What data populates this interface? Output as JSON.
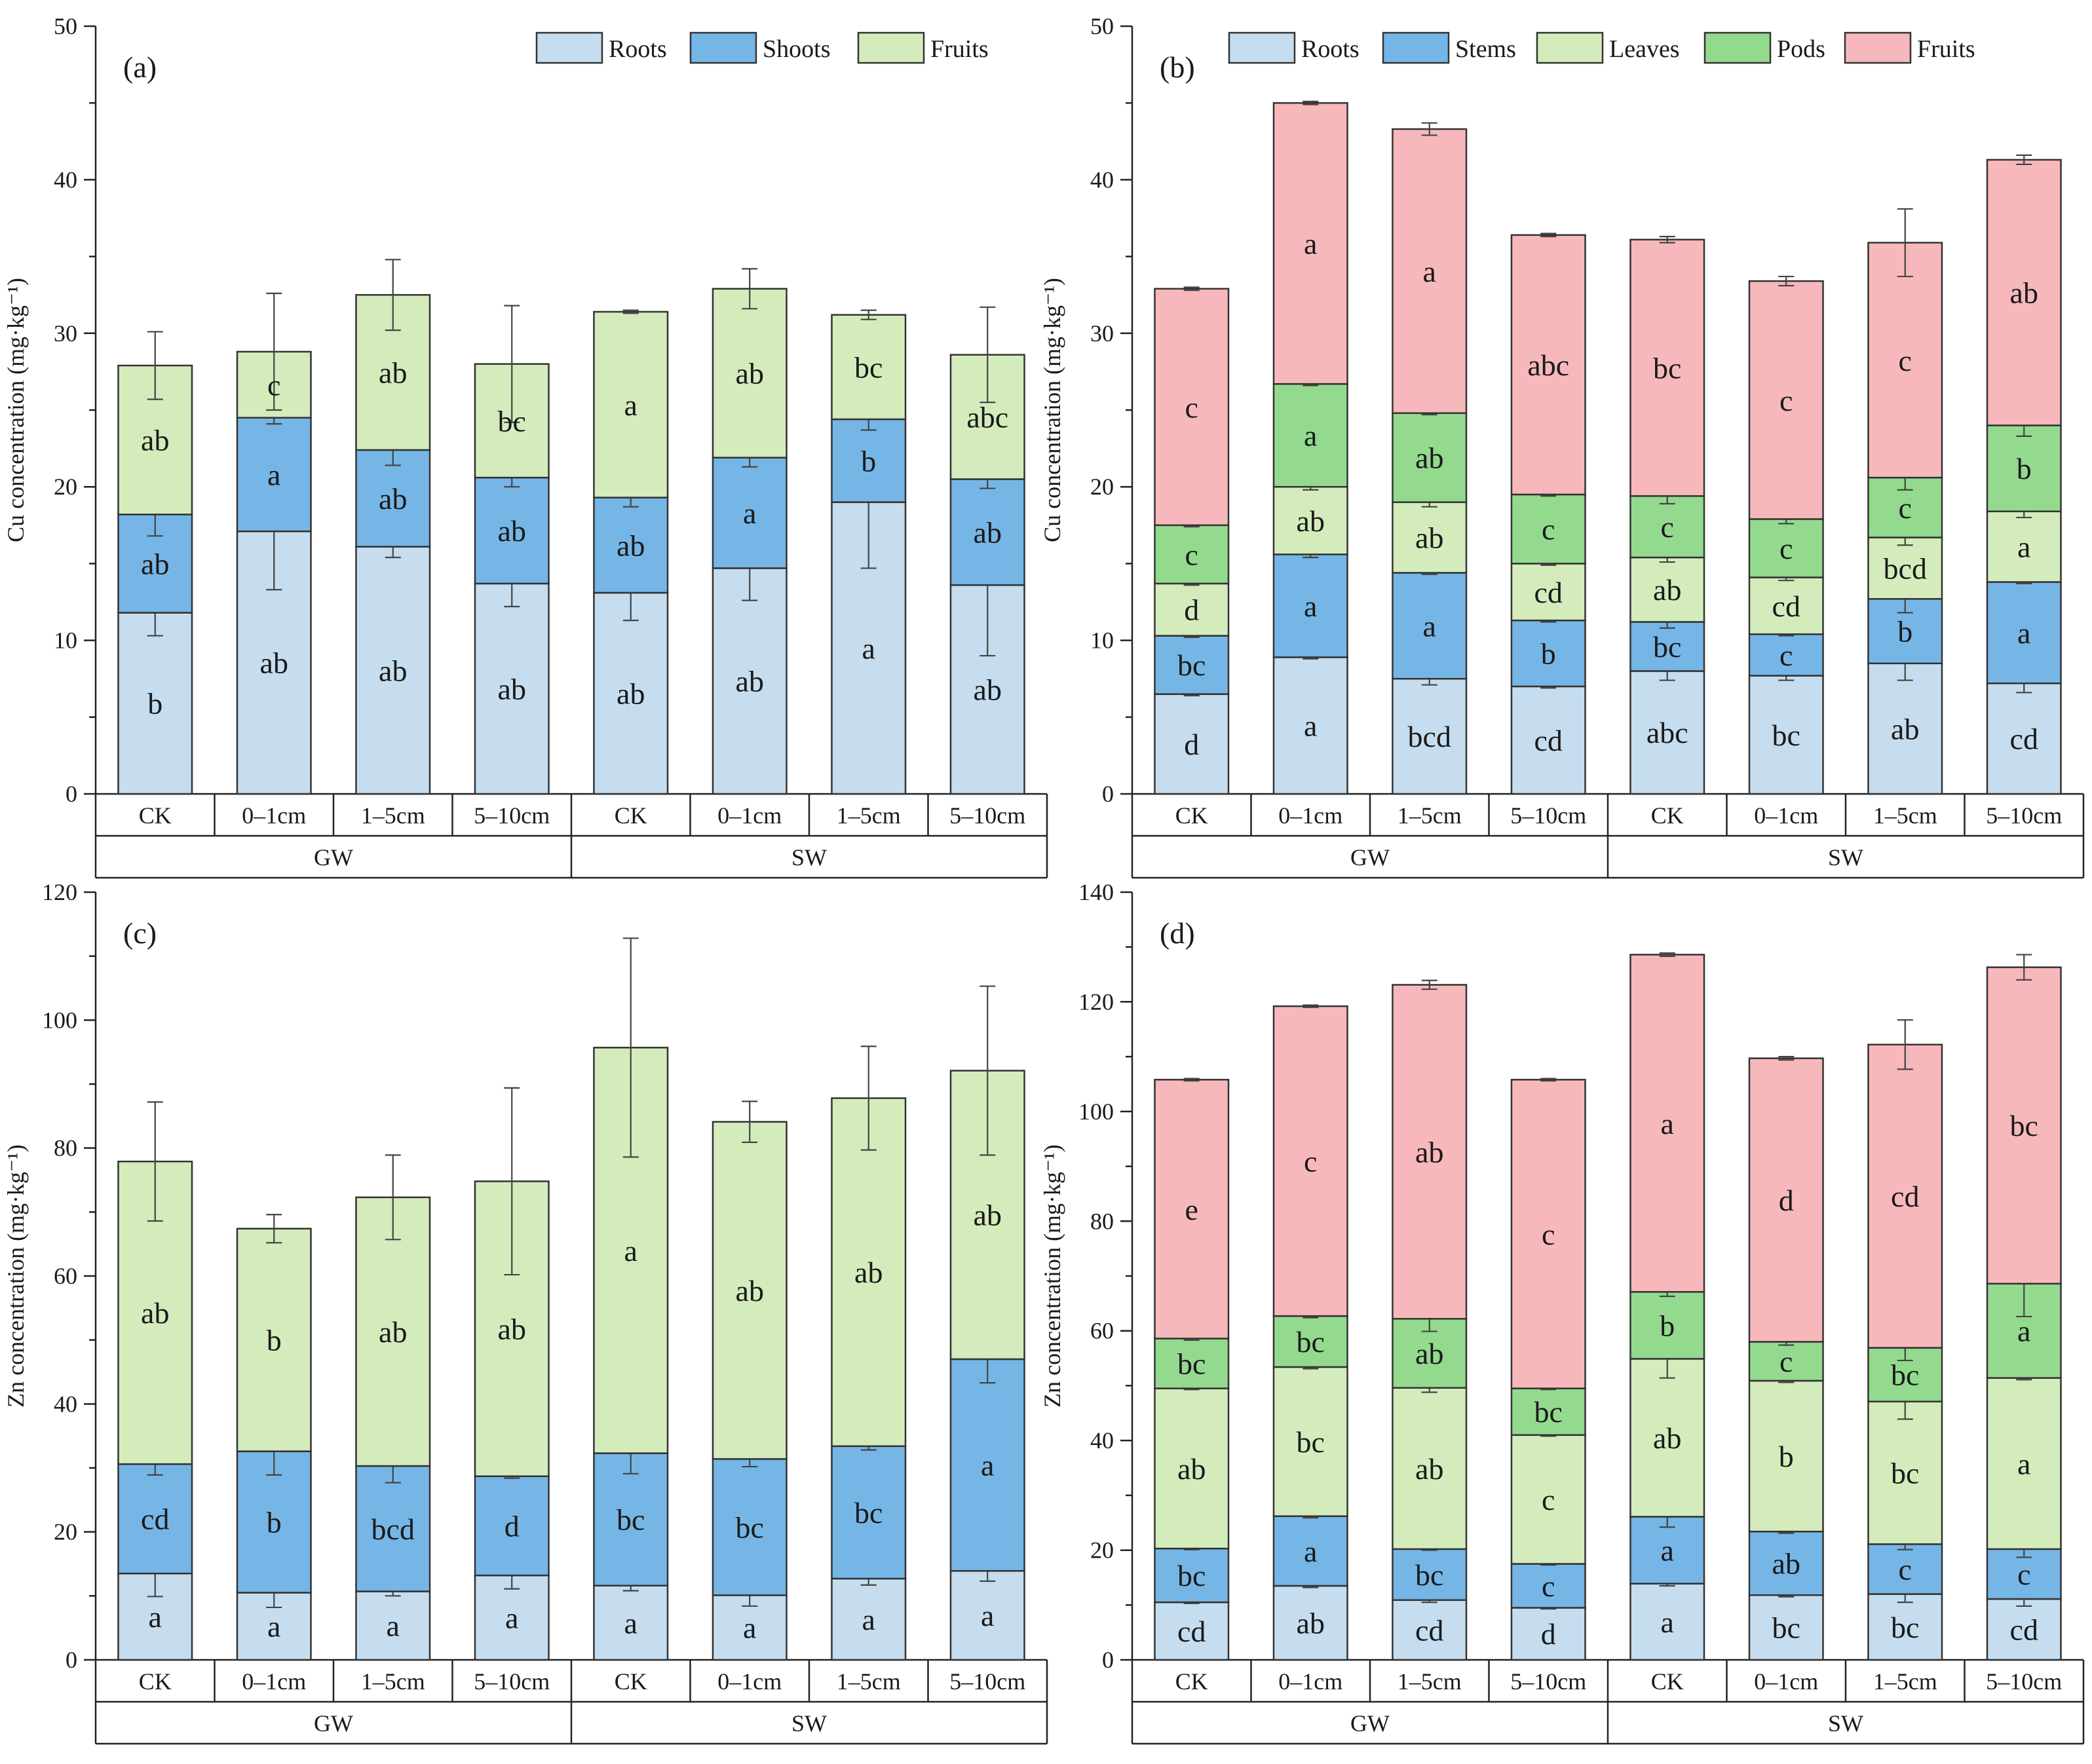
{
  "colors": {
    "Roots": "#c5ddef",
    "Shoots": "#76b6e6",
    "Stems": "#76b6e6",
    "Fruits_a_c": "#d4ecbc",
    "Leaves": "#d4ecbc",
    "Pods": "#93da8e",
    "Fruits_b_d": "#f7b8bc"
  },
  "chart_data": [
    {
      "panel": "(a)",
      "type": "stacked-bar",
      "ylabel": "Cu concentration (mg·kg⁻¹)",
      "ylim": [
        0,
        50
      ],
      "yticks": [
        0,
        10,
        20,
        30,
        40,
        50
      ],
      "categories": [
        "CK",
        "0–1cm",
        "1–5cm",
        "5–10cm",
        "CK",
        "0–1cm",
        "1–5cm",
        "5–10cm"
      ],
      "groups": [
        "GW",
        "SW"
      ],
      "series": [
        {
          "name": "Roots",
          "color_key": "Roots",
          "values": [
            11.8,
            17.1,
            16.1,
            13.7,
            13.1,
            14.7,
            19.0,
            13.6
          ],
          "errors": [
            1.5,
            3.8,
            0.7,
            1.5,
            1.8,
            2.1,
            4.3,
            4.6
          ],
          "letters": [
            "b",
            "ab",
            "ab",
            "ab",
            "ab",
            "ab",
            "a",
            "ab"
          ]
        },
        {
          "name": "Shoots",
          "color_key": "Shoots",
          "values": [
            6.4,
            7.4,
            6.3,
            6.9,
            6.2,
            7.2,
            5.4,
            6.9
          ],
          "errors": [
            1.4,
            0.4,
            1.0,
            0.6,
            0.6,
            0.6,
            0.7,
            0.6
          ],
          "letters": [
            "ab",
            "a",
            "ab",
            "ab",
            "ab",
            "a",
            "b",
            "ab"
          ]
        },
        {
          "name": "Fruits",
          "color_key": "Fruits_a_c",
          "values": [
            9.7,
            4.3,
            10.1,
            7.4,
            12.1,
            11.0,
            6.8,
            8.1
          ],
          "errors": [
            2.2,
            3.8,
            2.3,
            3.8,
            0.1,
            1.3,
            0.3,
            3.1
          ],
          "letters": [
            "ab",
            "c",
            "ab",
            "bc",
            "a",
            "ab",
            "bc",
            "abc"
          ]
        }
      ]
    },
    {
      "panel": "(b)",
      "type": "stacked-bar",
      "ylabel": "Cu concentration (mg·kg⁻¹)",
      "ylim": [
        0,
        50
      ],
      "yticks": [
        0,
        10,
        20,
        30,
        40,
        50
      ],
      "categories": [
        "CK",
        "0–1cm",
        "1–5cm",
        "5–10cm",
        "CK",
        "0–1cm",
        "1–5cm",
        "5–10cm"
      ],
      "groups": [
        "GW",
        "SW"
      ],
      "series": [
        {
          "name": "Roots",
          "color_key": "Roots",
          "values": [
            6.5,
            8.9,
            7.5,
            7.0,
            8.0,
            7.7,
            8.5,
            7.2
          ],
          "errors": [
            0.1,
            0.1,
            0.4,
            0.1,
            0.6,
            0.3,
            1.1,
            0.6
          ],
          "letters": [
            "d",
            "a",
            "bcd",
            "cd",
            "abc",
            "bc",
            "ab",
            "cd"
          ]
        },
        {
          "name": "Stems",
          "color_key": "Stems",
          "values": [
            3.8,
            6.7,
            6.9,
            4.3,
            3.2,
            2.7,
            4.2,
            6.6
          ],
          "errors": [
            0.1,
            0.2,
            0.1,
            0.1,
            0.4,
            0.1,
            0.9,
            0.1
          ],
          "letters": [
            "bc",
            "a",
            "a",
            "b",
            "bc",
            "c",
            "b",
            "a"
          ]
        },
        {
          "name": "Leaves",
          "color_key": "Leaves",
          "values": [
            3.4,
            4.4,
            4.6,
            3.7,
            4.2,
            3.7,
            4.0,
            4.6
          ],
          "errors": [
            0.1,
            0.2,
            0.3,
            0.1,
            0.3,
            0.2,
            0.5,
            0.4
          ],
          "letters": [
            "d",
            "ab",
            "ab",
            "cd",
            "ab",
            "cd",
            "bcd",
            "a"
          ]
        },
        {
          "name": "Pods",
          "color_key": "Pods",
          "values": [
            3.8,
            6.7,
            5.8,
            4.5,
            4.0,
            3.8,
            3.9,
            5.6
          ],
          "errors": [
            0.1,
            0.1,
            0.1,
            0.1,
            0.5,
            0.3,
            0.8,
            0.7
          ],
          "letters": [
            "c",
            "a",
            "ab",
            "c",
            "c",
            "c",
            "c",
            "b"
          ]
        },
        {
          "name": "Fruits",
          "color_key": "Fruits_b_d",
          "values": [
            15.4,
            18.3,
            18.5,
            16.9,
            16.7,
            15.5,
            15.3,
            17.3
          ],
          "errors": [
            0.1,
            0.1,
            0.4,
            0.1,
            0.2,
            0.3,
            2.2,
            0.3
          ],
          "letters": [
            "c",
            "a",
            "a",
            "abc",
            "bc",
            "c",
            "c",
            "ab"
          ]
        }
      ]
    },
    {
      "panel": "(c)",
      "type": "stacked-bar",
      "ylabel": "Zn concentration (mg·kg⁻¹)",
      "ylim": [
        0,
        120
      ],
      "yticks": [
        0,
        20,
        40,
        60,
        80,
        100,
        120
      ],
      "categories": [
        "CK",
        "0–1cm",
        "1–5cm",
        "5–10cm",
        "CK",
        "0–1cm",
        "1–5cm",
        "5–10cm"
      ],
      "groups": [
        "GW",
        "SW"
      ],
      "series": [
        {
          "name": "Roots",
          "color_key": "Roots",
          "values": [
            13.5,
            10.5,
            10.7,
            13.2,
            11.6,
            10.1,
            12.7,
            13.9
          ],
          "errors": [
            3.6,
            2.3,
            0.7,
            2.1,
            0.8,
            1.7,
            1.0,
            1.6
          ],
          "letters": [
            "a",
            "a",
            "a",
            "a",
            "a",
            "a",
            "a",
            "a"
          ]
        },
        {
          "name": "Shoots",
          "color_key": "Shoots",
          "values": [
            17.1,
            22.1,
            19.6,
            15.5,
            20.7,
            21.3,
            20.7,
            33.1
          ],
          "errors": [
            1.7,
            3.7,
            2.6,
            0.3,
            3.2,
            1.2,
            0.6,
            3.7
          ],
          "letters": [
            "cd",
            "b",
            "bcd",
            "d",
            "bc",
            "bc",
            "bc",
            "a"
          ]
        },
        {
          "name": "Fruits",
          "color_key": "Fruits_a_c",
          "values": [
            47.3,
            34.8,
            42.0,
            46.1,
            63.4,
            52.7,
            54.4,
            45.1
          ],
          "errors": [
            9.3,
            2.2,
            6.6,
            14.6,
            17.1,
            3.2,
            8.1,
            13.2
          ],
          "letters": [
            "ab",
            "b",
            "ab",
            "ab",
            "a",
            "ab",
            "ab",
            "ab"
          ]
        }
      ]
    },
    {
      "panel": "(d)",
      "type": "stacked-bar",
      "ylabel": "Zn concentration (mg·kg⁻¹)",
      "ylim": [
        0,
        140
      ],
      "yticks": [
        0,
        20,
        40,
        60,
        80,
        100,
        120,
        140
      ],
      "categories": [
        "CK",
        "0–1cm",
        "1–5cm",
        "5–10cm",
        "CK",
        "0–1cm",
        "1–5cm",
        "5–10cm"
      ],
      "groups": [
        "GW",
        "SW"
      ],
      "series": [
        {
          "name": "Roots",
          "color_key": "Roots",
          "values": [
            10.5,
            13.5,
            10.9,
            9.5,
            13.9,
            11.8,
            12.0,
            11.1
          ],
          "errors": [
            0.2,
            0.3,
            0.4,
            0.2,
            0.4,
            0.3,
            1.5,
            1.3
          ],
          "letters": [
            "cd",
            "ab",
            "cd",
            "d",
            "a",
            "bc",
            "bc",
            "cd"
          ]
        },
        {
          "name": "Stems",
          "color_key": "Stems",
          "values": [
            9.8,
            12.7,
            9.3,
            8.0,
            12.2,
            11.6,
            9.1,
            9.1
          ],
          "errors": [
            0.2,
            0.3,
            0.2,
            0.2,
            1.9,
            0.3,
            1.0,
            1.5
          ],
          "letters": [
            "bc",
            "a",
            "bc",
            "c",
            "a",
            "ab",
            "c",
            "c"
          ]
        },
        {
          "name": "Leaves",
          "color_key": "Leaves",
          "values": [
            29.2,
            27.2,
            29.4,
            23.5,
            28.8,
            27.5,
            26.0,
            31.2
          ],
          "errors": [
            0.2,
            0.3,
            0.8,
            0.2,
            3.5,
            0.3,
            3.2,
            0.3
          ],
          "letters": [
            "ab",
            "bc",
            "ab",
            "c",
            "ab",
            "b",
            "bc",
            "a"
          ]
        },
        {
          "name": "Pods",
          "color_key": "Pods",
          "values": [
            9.1,
            9.3,
            12.6,
            8.5,
            12.2,
            7.1,
            9.8,
            17.2
          ],
          "errors": [
            0.3,
            0.3,
            2.3,
            0.2,
            0.8,
            0.6,
            2.3,
            6.0
          ],
          "letters": [
            "bc",
            "bc",
            "ab",
            "bc",
            "b",
            "c",
            "bc",
            "a"
          ]
        },
        {
          "name": "Fruits",
          "color_key": "Fruits_b_d",
          "values": [
            47.2,
            56.5,
            60.9,
            56.3,
            61.5,
            51.7,
            55.3,
            57.7
          ],
          "errors": [
            0.2,
            0.2,
            0.8,
            0.2,
            0.3,
            0.3,
            4.5,
            2.3
          ],
          "letters": [
            "e",
            "c",
            "ab",
            "c",
            "a",
            "d",
            "cd",
            "bc"
          ]
        }
      ]
    }
  ]
}
